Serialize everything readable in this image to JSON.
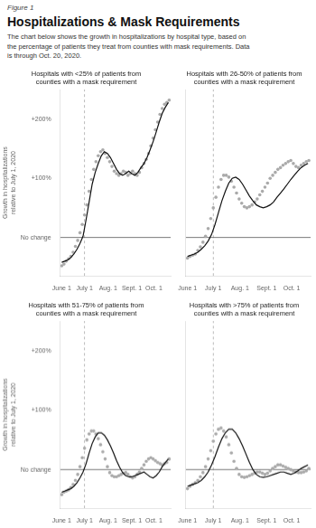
{
  "title": "Hospitalizations & Mask Requirements",
  "subtitle": "The chart below shows the growth in hospitalizations by hospital type, based on\nthe percentage of patients they treat from counties with mask requirements. Data\nis through Oct. 20, 2020.",
  "annotations": [
    "Figure 1"
  ],
  "chart_data": [
    {
      "type": "scatter",
      "title": "Hospitals with <25% of patients from\ncounties with a mask requirement",
      "ylabel": "Growth in hospitalizations\nrelative to July 1, 2020",
      "xlim": [
        -2,
        143
      ],
      "ylim": [
        -0.65,
        2.5
      ],
      "xticks": [
        {
          "value": 0,
          "label": "June 1"
        },
        {
          "value": 30,
          "label": "July 1"
        },
        {
          "value": 61,
          "label": "Aug. 1"
        },
        {
          "value": 92,
          "label": "Sept. 1"
        },
        {
          "value": 121,
          "label": "Oct. 1"
        }
      ],
      "yticks": [
        {
          "value": 2,
          "label": "+200%"
        },
        {
          "value": 1,
          "label": "+100%"
        },
        {
          "value": 0,
          "label": "No change"
        }
      ],
      "grid": false,
      "reference_lines": [
        {
          "axis": "y",
          "value": 0,
          "color": "#555555"
        },
        {
          "axis": "x",
          "value": 30,
          "color": "#aaaaaa",
          "line_style": "dashed"
        }
      ],
      "series": [
        {
          "type": "scatter",
          "color": "#aaaaaa",
          "x": [
            0,
            3,
            6,
            9,
            12,
            15,
            18,
            21,
            24,
            27,
            30,
            33,
            36,
            39,
            42,
            45,
            48,
            51,
            54,
            57,
            60,
            63,
            66,
            69,
            72,
            75,
            78,
            81,
            84,
            87,
            90,
            93,
            96,
            99,
            102,
            105,
            108,
            111,
            114,
            117,
            120,
            123,
            126,
            129,
            132,
            135,
            138,
            141
          ],
          "values": [
            -0.48,
            -0.45,
            -0.4,
            -0.36,
            -0.32,
            -0.25,
            -0.15,
            -0.05,
            0.08,
            0.22,
            0.38,
            0.55,
            0.78,
            0.98,
            1.15,
            1.28,
            1.38,
            1.45,
            1.48,
            1.42,
            1.35,
            1.28,
            1.2,
            1.12,
            1.08,
            1.05,
            1.08,
            1.12,
            1.1,
            1.05,
            1.08,
            1.12,
            1.08,
            1.05,
            1.1,
            1.18,
            1.25,
            1.32,
            1.42,
            1.55,
            1.68,
            1.82,
            1.95,
            2.08,
            2.18,
            2.25,
            2.28,
            2.32
          ]
        },
        {
          "type": "line",
          "color": "#111111",
          "x": [
            0,
            4,
            8,
            12,
            16,
            20,
            24,
            28,
            32,
            36,
            40,
            44,
            48,
            52,
            56,
            60,
            64,
            68,
            72,
            76,
            80,
            84,
            88,
            92,
            96,
            100,
            104,
            108,
            112,
            116,
            120,
            124,
            128,
            132,
            136,
            140
          ],
          "values": [
            -0.42,
            -0.4,
            -0.38,
            -0.34,
            -0.28,
            -0.2,
            -0.1,
            0.02,
            0.3,
            0.6,
            0.9,
            1.1,
            1.25,
            1.38,
            1.45,
            1.42,
            1.35,
            1.25,
            1.15,
            1.08,
            1.05,
            1.08,
            1.12,
            1.08,
            1.05,
            1.1,
            1.18,
            1.25,
            1.35,
            1.48,
            1.62,
            1.78,
            1.95,
            2.1,
            2.2,
            2.28
          ]
        }
      ]
    },
    {
      "type": "scatter",
      "title": "Hospitals with 26-50% of patients from\ncounties with a mask requirement",
      "xlim": [
        -2,
        143
      ],
      "ylim": [
        -0.65,
        2.5
      ],
      "xticks": [
        {
          "value": 0,
          "label": "June 1"
        },
        {
          "value": 30,
          "label": "July 1"
        },
        {
          "value": 61,
          "label": "Aug. 1"
        },
        {
          "value": 92,
          "label": "Sept. 1"
        },
        {
          "value": 121,
          "label": "Oct. 1"
        }
      ],
      "yticks": [
        {
          "value": 2,
          "label": "+200%"
        },
        {
          "value": 1,
          "label": "+100%"
        },
        {
          "value": 0,
          "label": "No change"
        }
      ],
      "tick_labels": "x",
      "grid": false,
      "reference_lines": [
        {
          "axis": "y",
          "value": 0,
          "color": "#555555"
        },
        {
          "axis": "x",
          "value": 30,
          "color": "#aaaaaa",
          "line_style": "dashed"
        }
      ],
      "series": [
        {
          "type": "scatter",
          "color": "#aaaaaa",
          "x": [
            0,
            3,
            6,
            9,
            12,
            15,
            18,
            21,
            24,
            27,
            30,
            33,
            36,
            39,
            42,
            45,
            48,
            51,
            54,
            57,
            60,
            63,
            66,
            69,
            72,
            75,
            78,
            81,
            84,
            87,
            90,
            93,
            96,
            99,
            102,
            105,
            108,
            111,
            114,
            117,
            120,
            123,
            126,
            129,
            132,
            135,
            138,
            141
          ],
          "values": [
            -0.35,
            -0.32,
            -0.3,
            -0.28,
            -0.22,
            -0.16,
            -0.08,
            0.02,
            0.15,
            0.32,
            0.5,
            0.68,
            0.85,
            0.98,
            1.05,
            1.05,
            1.02,
            0.95,
            0.85,
            0.75,
            0.65,
            0.58,
            0.52,
            0.5,
            0.52,
            0.55,
            0.6,
            0.65,
            0.72,
            0.78,
            0.85,
            0.92,
            1.0,
            1.05,
            1.1,
            1.15,
            1.18,
            1.22,
            1.25,
            1.28,
            1.3,
            1.25,
            1.2,
            1.18,
            1.22,
            1.25,
            1.28,
            1.3
          ]
        },
        {
          "type": "line",
          "color": "#111111",
          "x": [
            0,
            4,
            8,
            12,
            16,
            20,
            24,
            28,
            32,
            36,
            40,
            44,
            48,
            52,
            56,
            60,
            64,
            68,
            72,
            76,
            80,
            84,
            88,
            92,
            96,
            100,
            104,
            108,
            112,
            116,
            120,
            124,
            128,
            132,
            136,
            140
          ],
          "values": [
            -0.32,
            -0.3,
            -0.28,
            -0.25,
            -0.2,
            -0.14,
            -0.06,
            0.05,
            0.22,
            0.42,
            0.62,
            0.78,
            0.92,
            1.0,
            1.02,
            0.98,
            0.9,
            0.8,
            0.7,
            0.62,
            0.55,
            0.52,
            0.5,
            0.52,
            0.55,
            0.6,
            0.68,
            0.75,
            0.82,
            0.9,
            0.98,
            1.05,
            1.12,
            1.18,
            1.22,
            1.25
          ]
        }
      ]
    },
    {
      "type": "scatter",
      "title": "Hospitals with 51-75% of patients from\ncounties with a mask requirement",
      "ylabel": "Growth in hospitalizations\nrelative to July 1, 2020",
      "xlim": [
        -2,
        143
      ],
      "ylim": [
        -0.65,
        2.5
      ],
      "xticks": [
        {
          "value": 0,
          "label": "June 1"
        },
        {
          "value": 30,
          "label": "July 1"
        },
        {
          "value": 61,
          "label": "Aug. 1"
        },
        {
          "value": 92,
          "label": "Sept. 1"
        },
        {
          "value": 121,
          "label": "Oct. 1"
        }
      ],
      "yticks": [
        {
          "value": 2,
          "label": "+200%"
        },
        {
          "value": 1,
          "label": "+100%"
        },
        {
          "value": 0,
          "label": "No change"
        }
      ],
      "grid": false,
      "reference_lines": [
        {
          "axis": "y",
          "value": 0,
          "color": "#555555"
        },
        {
          "axis": "x",
          "value": 30,
          "color": "#aaaaaa",
          "line_style": "dashed"
        }
      ],
      "series": [
        {
          "type": "scatter",
          "color": "#aaaaaa",
          "x": [
            0,
            3,
            6,
            9,
            12,
            15,
            18,
            21,
            24,
            27,
            30,
            33,
            36,
            39,
            42,
            45,
            48,
            51,
            54,
            57,
            60,
            63,
            66,
            69,
            72,
            75,
            78,
            81,
            84,
            87,
            90,
            93,
            96,
            99,
            102,
            105,
            108,
            111,
            114,
            117,
            120,
            123,
            126,
            129,
            132,
            135,
            138,
            141
          ],
          "values": [
            -0.42,
            -0.38,
            -0.36,
            -0.34,
            -0.3,
            -0.25,
            -0.18,
            -0.08,
            0.05,
            0.2,
            0.36,
            0.5,
            0.6,
            0.65,
            0.65,
            0.6,
            0.52,
            0.42,
            0.3,
            0.18,
            0.05,
            -0.05,
            -0.1,
            -0.12,
            -0.12,
            -0.1,
            -0.08,
            -0.06,
            -0.05,
            -0.08,
            -0.12,
            -0.14,
            -0.12,
            -0.08,
            -0.04,
            0.02,
            0.08,
            0.14,
            0.18,
            0.2,
            0.18,
            0.15,
            0.12,
            0.1,
            0.08,
            0.1,
            0.12,
            0.18
          ]
        },
        {
          "type": "line",
          "color": "#111111",
          "x": [
            0,
            4,
            8,
            12,
            16,
            20,
            24,
            28,
            32,
            36,
            40,
            44,
            48,
            52,
            56,
            60,
            64,
            68,
            72,
            76,
            80,
            84,
            88,
            92,
            96,
            100,
            104,
            108,
            112,
            116,
            120,
            124,
            128,
            132,
            136,
            140
          ],
          "values": [
            -0.38,
            -0.36,
            -0.34,
            -0.32,
            -0.28,
            -0.22,
            -0.14,
            -0.04,
            0.1,
            0.28,
            0.44,
            0.55,
            0.62,
            0.62,
            0.58,
            0.5,
            0.4,
            0.28,
            0.15,
            0.04,
            -0.05,
            -0.1,
            -0.12,
            -0.12,
            -0.1,
            -0.08,
            -0.06,
            -0.04,
            -0.08,
            -0.12,
            -0.14,
            -0.1,
            -0.04,
            0.05,
            0.12,
            0.18
          ]
        }
      ]
    },
    {
      "type": "scatter",
      "title": "Hospitals with >75% of patients from\ncounties with a mask requirement",
      "xlim": [
        -2,
        143
      ],
      "ylim": [
        -0.65,
        2.5
      ],
      "xticks": [
        {
          "value": 0,
          "label": "June 1"
        },
        {
          "value": 30,
          "label": "July 1"
        },
        {
          "value": 61,
          "label": "Aug. 1"
        },
        {
          "value": 92,
          "label": "Sept. 1"
        },
        {
          "value": 121,
          "label": "Oct. 1"
        }
      ],
      "yticks": [
        {
          "value": 2,
          "label": "+200%"
        },
        {
          "value": 1,
          "label": "+100%"
        },
        {
          "value": 0,
          "label": "No change"
        }
      ],
      "tick_labels": "x",
      "grid": false,
      "reference_lines": [
        {
          "axis": "y",
          "value": 0,
          "color": "#555555"
        },
        {
          "axis": "x",
          "value": 30,
          "color": "#aaaaaa",
          "line_style": "dashed"
        }
      ],
      "series": [
        {
          "type": "scatter",
          "color": "#aaaaaa",
          "x": [
            0,
            3,
            6,
            9,
            12,
            15,
            18,
            21,
            24,
            27,
            30,
            33,
            36,
            39,
            42,
            45,
            48,
            51,
            54,
            57,
            60,
            63,
            66,
            69,
            72,
            75,
            78,
            81,
            84,
            87,
            90,
            93,
            96,
            99,
            102,
            105,
            108,
            111,
            114,
            117,
            120,
            123,
            126,
            129,
            132,
            135,
            138,
            141
          ],
          "values": [
            -0.32,
            -0.28,
            -0.25,
            -0.22,
            -0.18,
            -0.12,
            -0.05,
            0.05,
            0.18,
            0.32,
            0.48,
            0.6,
            0.68,
            0.7,
            0.65,
            0.55,
            0.42,
            0.28,
            0.14,
            0.02,
            -0.08,
            -0.12,
            -0.13,
            -0.12,
            -0.1,
            -0.08,
            -0.06,
            -0.04,
            -0.04,
            -0.06,
            -0.08,
            -0.06,
            -0.02,
            0.02,
            0.05,
            0.08,
            0.08,
            0.06,
            0.04,
            0.02,
            0.0,
            -0.02,
            -0.04,
            -0.05,
            -0.05,
            -0.04,
            -0.02,
            0.02
          ]
        },
        {
          "type": "line",
          "color": "#111111",
          "x": [
            0,
            4,
            8,
            12,
            16,
            20,
            24,
            28,
            32,
            36,
            40,
            44,
            48,
            52,
            56,
            60,
            64,
            68,
            72,
            76,
            80,
            84,
            88,
            92,
            96,
            100,
            104,
            108,
            112,
            116,
            120,
            124,
            128,
            132,
            136,
            140
          ],
          "values": [
            -0.28,
            -0.26,
            -0.24,
            -0.22,
            -0.18,
            -0.12,
            -0.04,
            0.08,
            0.22,
            0.38,
            0.52,
            0.62,
            0.68,
            0.68,
            0.62,
            0.52,
            0.4,
            0.26,
            0.12,
            0.0,
            -0.08,
            -0.12,
            -0.13,
            -0.12,
            -0.1,
            -0.08,
            -0.06,
            -0.04,
            -0.04,
            -0.06,
            -0.08,
            -0.06,
            -0.02,
            0.02,
            0.05,
            0.08
          ]
        }
      ]
    }
  ]
}
